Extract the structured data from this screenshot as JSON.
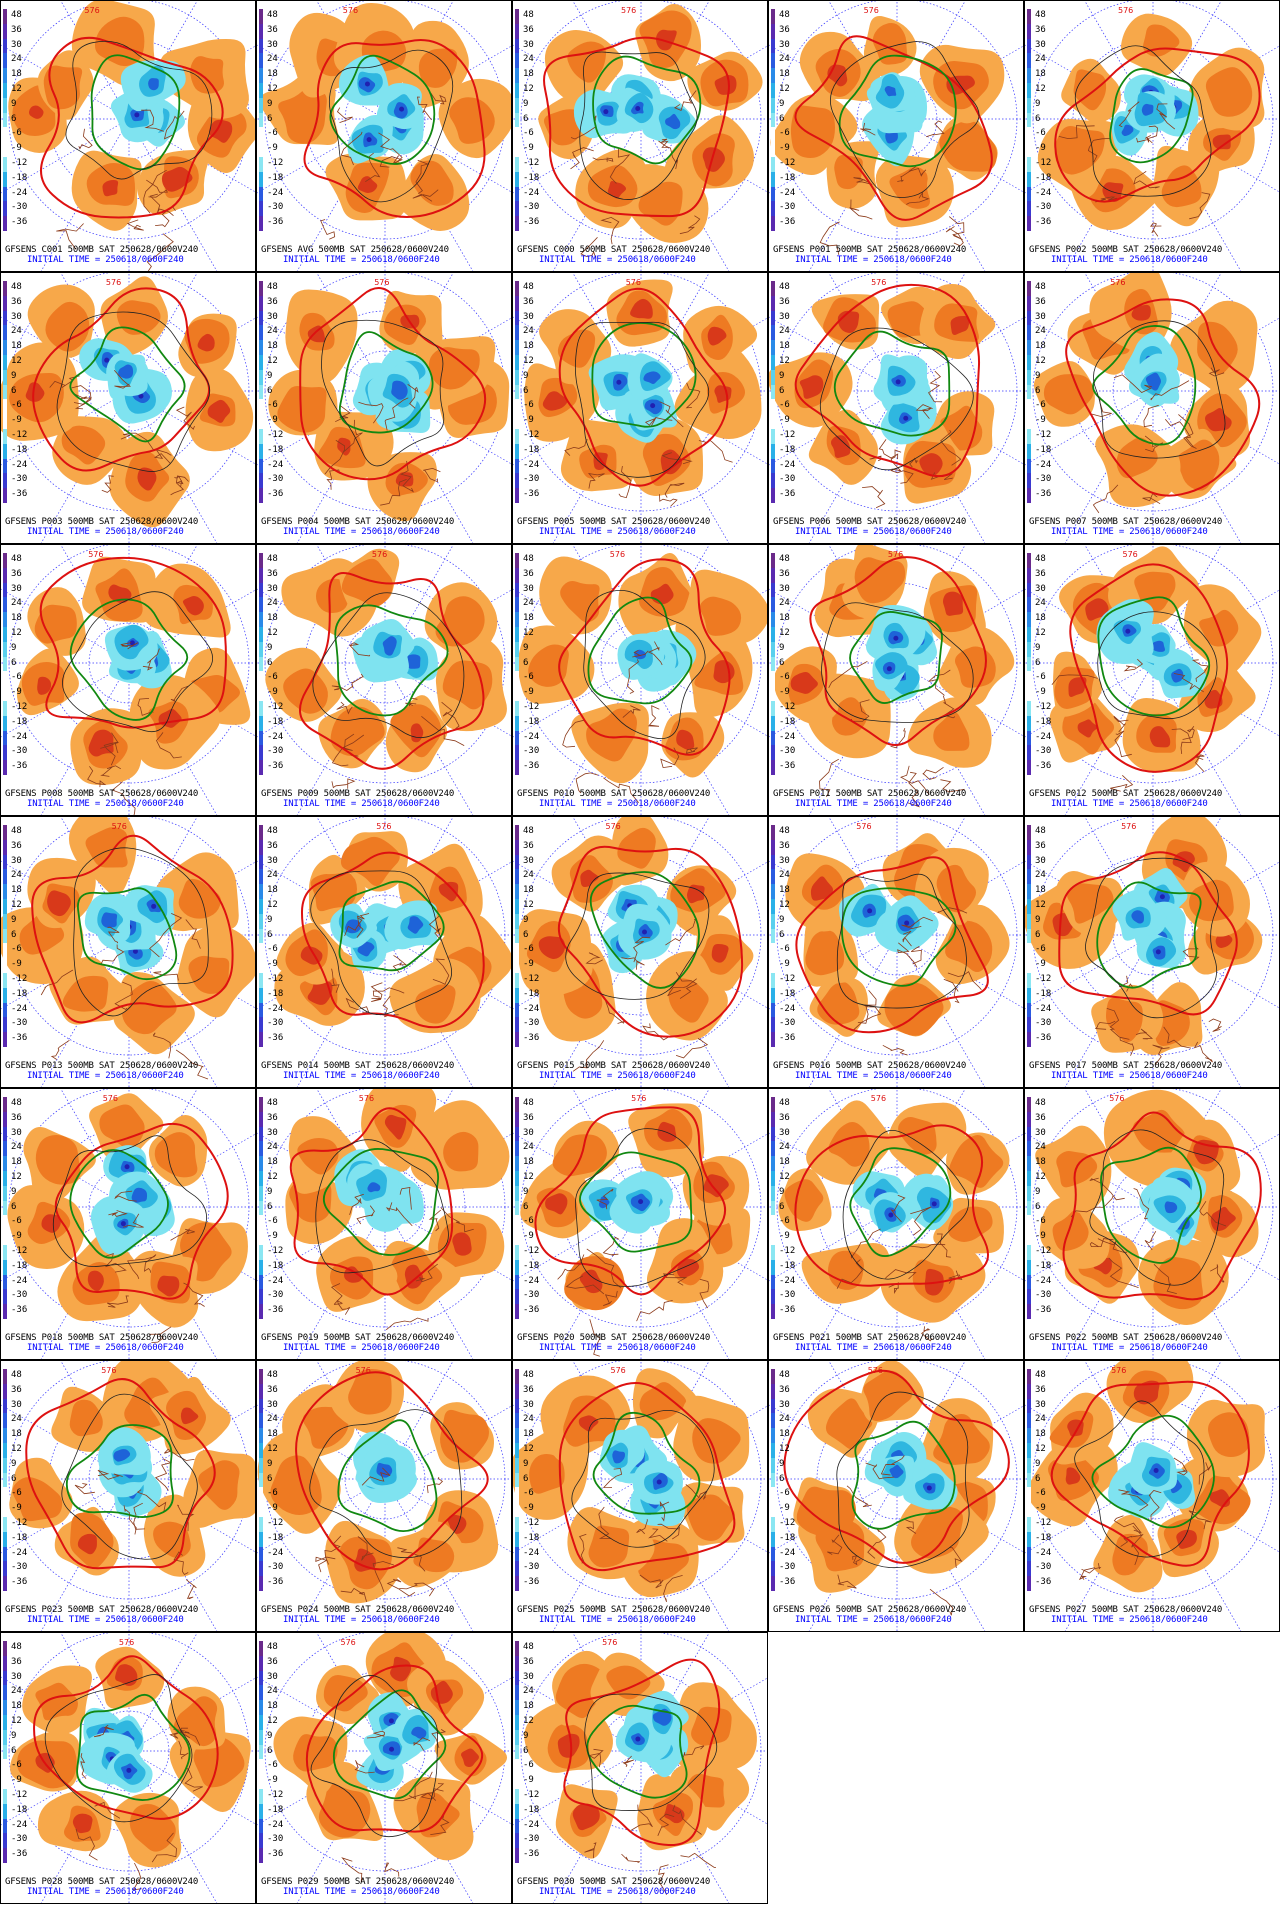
{
  "caption_prefix": "GFSENS",
  "caption_suffix": "500MB SAT 250628/0600V240",
  "initial_time": "INITIAL TIME = 250618/0600F240",
  "contour_label": "576",
  "scale_labels": [
    "48",
    "36",
    "30",
    "24",
    "18",
    "12",
    "9",
    "6",
    "-6",
    "-9",
    "-12",
    "-18",
    "-24",
    "-30",
    "-36"
  ],
  "colors": {
    "warm_light": "#f7a84a",
    "warm_mid": "#ee7a22",
    "warm_dark": "#d8391a",
    "cool_light": "#7fe3f0",
    "cool_mid": "#2fb7e0",
    "cool_dark": "#1e63d8",
    "cool_deep": "#2020b0",
    "contour_red": "#dd1111",
    "contour_green": "#118811",
    "coast": "#8b3a1a",
    "grid": "#3333ff"
  },
  "panels": [
    {
      "member": "C001"
    },
    {
      "member": "AVG"
    },
    {
      "member": "C000"
    },
    {
      "member": "P001"
    },
    {
      "member": "P002"
    },
    {
      "member": "P003"
    },
    {
      "member": "P004"
    },
    {
      "member": "P005"
    },
    {
      "member": "P006"
    },
    {
      "member": "P007"
    },
    {
      "member": "P008"
    },
    {
      "member": "P009"
    },
    {
      "member": "P010"
    },
    {
      "member": "P011"
    },
    {
      "member": "P012"
    },
    {
      "member": "P013"
    },
    {
      "member": "P014"
    },
    {
      "member": "P015"
    },
    {
      "member": "P016"
    },
    {
      "member": "P017"
    },
    {
      "member": "P018"
    },
    {
      "member": "P019"
    },
    {
      "member": "P020"
    },
    {
      "member": "P021"
    },
    {
      "member": "P022"
    },
    {
      "member": "P023"
    },
    {
      "member": "P024"
    },
    {
      "member": "P025"
    },
    {
      "member": "P026"
    },
    {
      "member": "P027"
    },
    {
      "member": "P028"
    },
    {
      "member": "P029"
    },
    {
      "member": "P030"
    }
  ]
}
